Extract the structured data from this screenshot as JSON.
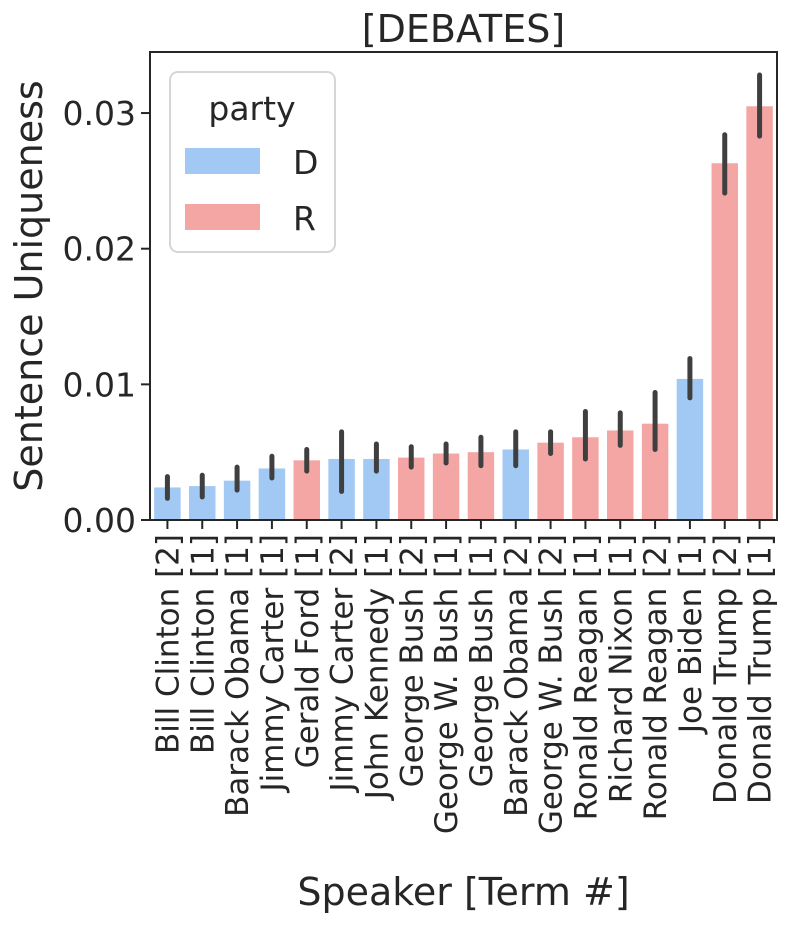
{
  "chart_data": {
    "type": "bar",
    "title": "[DEBATES]",
    "xlabel": "Speaker [Term #]",
    "ylabel": "Sentence Uniqueness",
    "ylim": [
      0,
      0.0345
    ],
    "yticks": [
      "0.00",
      "0.01",
      "0.02",
      "0.03"
    ],
    "ytick_values": [
      0.0,
      0.01,
      0.02,
      0.03
    ],
    "grid": false,
    "legend": {
      "title": "party",
      "placement": "top-left",
      "entries": [
        {
          "label": "D",
          "color": "#a1c9f4"
        },
        {
          "label": "R",
          "color": "#f4a6a4"
        }
      ]
    },
    "categories": [
      "Bill Clinton [2]",
      "Bill Clinton [1]",
      "Barack Obama [1]",
      "Jimmy Carter [1]",
      "Gerald Ford [1]",
      "Jimmy Carter [2]",
      "John Kennedy [1]",
      "George Bush [2]",
      "George W. Bush [1]",
      "George Bush [1]",
      "Barack Obama [2]",
      "George W. Bush [2]",
      "Ronald Reagan [1]",
      "Richard Nixon [1]",
      "Ronald Reagan [2]",
      "Joe Biden [1]",
      "Donald Trump [2]",
      "Donald Trump [1]"
    ],
    "party": [
      "D",
      "D",
      "D",
      "D",
      "R",
      "D",
      "D",
      "R",
      "R",
      "R",
      "D",
      "R",
      "R",
      "R",
      "R",
      "D",
      "R",
      "R"
    ],
    "values": [
      0.0024,
      0.0025,
      0.0029,
      0.0038,
      0.0044,
      0.0045,
      0.0045,
      0.0046,
      0.0049,
      0.005,
      0.0052,
      0.0057,
      0.0061,
      0.0066,
      0.0071,
      0.0104,
      0.0263,
      0.0305
    ],
    "error_low": [
      0.0016,
      0.0017,
      0.0022,
      0.0031,
      0.0036,
      0.0021,
      0.0036,
      0.0039,
      0.0042,
      0.004,
      0.004,
      0.0049,
      0.0045,
      0.0055,
      0.0052,
      0.009,
      0.0241,
      0.0283
    ],
    "error_high": [
      0.0032,
      0.0033,
      0.0039,
      0.0047,
      0.0052,
      0.0065,
      0.0056,
      0.0054,
      0.0056,
      0.0061,
      0.0065,
      0.0065,
      0.008,
      0.0079,
      0.0094,
      0.0119,
      0.0284,
      0.0328
    ]
  }
}
